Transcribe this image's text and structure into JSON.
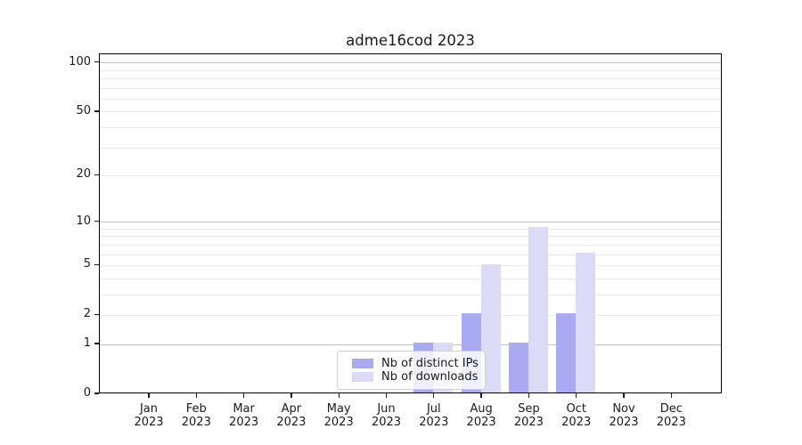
{
  "chart_data": {
    "type": "bar",
    "title": "adme16cod 2023",
    "x_axis": {
      "categories": [
        {
          "month": "Jan",
          "year": "2023"
        },
        {
          "month": "Feb",
          "year": "2023"
        },
        {
          "month": "Mar",
          "year": "2023"
        },
        {
          "month": "Apr",
          "year": "2023"
        },
        {
          "month": "May",
          "year": "2023"
        },
        {
          "month": "Jun",
          "year": "2023"
        },
        {
          "month": "Jul",
          "year": "2023"
        },
        {
          "month": "Aug",
          "year": "2023"
        },
        {
          "month": "Sep",
          "year": "2023"
        },
        {
          "month": "Oct",
          "year": "2023"
        },
        {
          "month": "Nov",
          "year": "2023"
        },
        {
          "month": "Dec",
          "year": "2023"
        }
      ]
    },
    "y_axis": {
      "scale": "log1p",
      "max": 113,
      "ticks": [
        0,
        1,
        2,
        5,
        10,
        20,
        50,
        100
      ],
      "tick_labels": [
        "0",
        "1",
        "2",
        "5",
        "10",
        "20",
        "50",
        "100"
      ],
      "major_gridlines": [
        1,
        10,
        100
      ],
      "minor_gridlines": [
        2,
        3,
        4,
        5,
        6,
        7,
        8,
        9,
        20,
        30,
        40,
        50,
        60,
        70,
        80,
        90
      ],
      "grid": true
    },
    "series": [
      {
        "name": "Nb of distinct IPs",
        "color": "#a9aaf2",
        "values": [
          0,
          0,
          0,
          0,
          0,
          0,
          1,
          2,
          1,
          2,
          0,
          0
        ]
      },
      {
        "name": "Nb of downloads",
        "color": "#dbdbf8",
        "values": [
          0,
          0,
          0,
          0,
          0,
          0,
          1,
          5,
          9,
          6,
          0,
          0
        ]
      }
    ],
    "legend_position": "lower center"
  },
  "colors": {
    "major_grid": "#c2c2c2",
    "minor_grid": "#eaeaea",
    "spine": "#000000",
    "text": "#1a1a1a"
  }
}
